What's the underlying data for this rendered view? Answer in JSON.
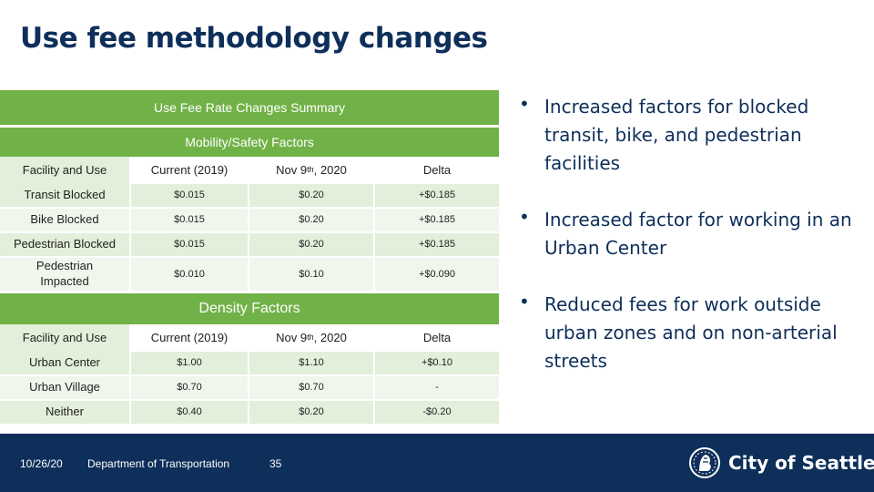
{
  "title": "Use fee methodology changes",
  "table": {
    "summary_title": "Use Fee Rate Changes Summary",
    "mobility": {
      "section_title": "Mobility/Safety Factors",
      "header": {
        "facility": "Facility and Use",
        "current": "Current (2019)",
        "nov_prefix": "Nov 9",
        "nov_sup": "th",
        "nov_suffix": ", 2020",
        "delta": "Delta"
      },
      "rows": [
        {
          "facility": "Transit Blocked",
          "current": "$0.015",
          "nov": "$0.20",
          "delta": "+$0.185"
        },
        {
          "facility": "Bike Blocked",
          "current": "$0.015",
          "nov": "$0.20",
          "delta": "+$0.185"
        },
        {
          "facility": "Pedestrian Blocked",
          "current": "$0.015",
          "nov": "$0.20",
          "delta": "+$0.185"
        },
        {
          "facility": "Pedestrian Impacted",
          "current": "$0.010",
          "nov": "$0.10",
          "delta": "+$0.090"
        }
      ]
    },
    "density": {
      "section_title": "Density Factors",
      "header": {
        "facility": "Facility and Use",
        "current": "Current (2019)",
        "nov_prefix": "Nov 9",
        "nov_sup": "th",
        "nov_suffix": ", 2020",
        "delta": "Delta"
      },
      "rows": [
        {
          "facility": "Urban Center",
          "current": "$1.00",
          "nov": "$1.10",
          "delta": "+$0.10"
        },
        {
          "facility": "Urban Village",
          "current": "$0.70",
          "nov": "$0.70",
          "delta": "-"
        },
        {
          "facility": "Neither",
          "current": "$0.40",
          "nov": "$0.20",
          "delta": "-$0.20"
        }
      ]
    }
  },
  "bullets": [
    "Increased factors for blocked transit, bike, and pedestrian facilities",
    "Increased factor for working in an Urban Center",
    "Reduced fees for work outside urban zones and on non-arterial streets"
  ],
  "bullet_symbol": "•",
  "footer": {
    "date": "10/26/20",
    "department": "Department of Transportation",
    "page_number": "35",
    "logo_text": "City of Seattle",
    "logo_icon": "seattle-seal-icon"
  },
  "colors": {
    "green": "#71b248",
    "light_green": "#e2efda",
    "navy": "#0e2f5a"
  }
}
